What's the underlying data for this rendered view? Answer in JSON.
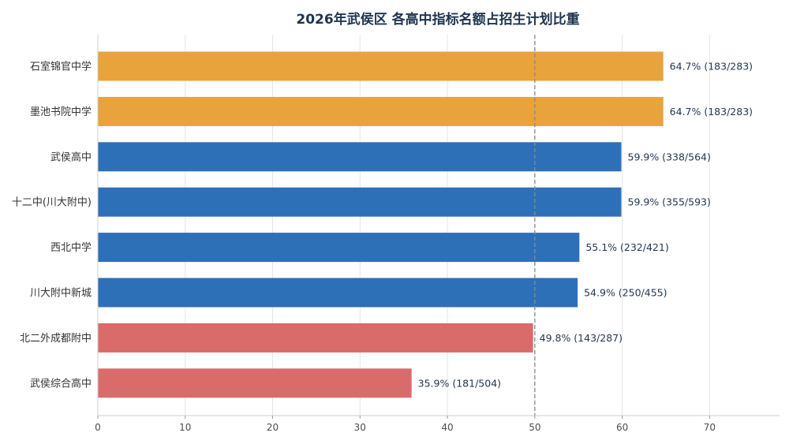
{
  "chart_data": {
    "type": "bar",
    "orientation": "horizontal",
    "title": "2026年武侯区 各高中指标名额占招生计划比重",
    "categories": [
      "石室锦官中学",
      "墨池书院中学",
      "武侯高中",
      "十二中(川大附中)",
      "西北中学",
      "川大附中新城",
      "北二外成都附中",
      "武侯综合高中"
    ],
    "values": [
      64.7,
      64.7,
      59.9,
      59.9,
      55.1,
      54.9,
      49.8,
      35.9
    ],
    "value_labels": [
      "64.7%",
      "64.7%",
      "59.9%",
      "59.9%",
      "55.1%",
      "54.9%",
      "49.8%",
      "35.9%"
    ],
    "count_labels": [
      "(183/283)",
      "(183/283)",
      "(338/564)",
      "(355/593)",
      "(232/421)",
      "(250/455)",
      "(143/287)",
      "(181/504)"
    ],
    "bar_colors": [
      "#e8a33d",
      "#e8a33d",
      "#2e70b8",
      "#2e70b8",
      "#2e70b8",
      "#2e70b8",
      "#d96b6b",
      "#d96b6b"
    ],
    "xlim": [
      0,
      78
    ],
    "xticks": [
      0,
      10,
      20,
      30,
      40,
      50,
      60,
      70
    ],
    "reference_line": 50,
    "grid": true,
    "xlabel": "",
    "ylabel": ""
  }
}
